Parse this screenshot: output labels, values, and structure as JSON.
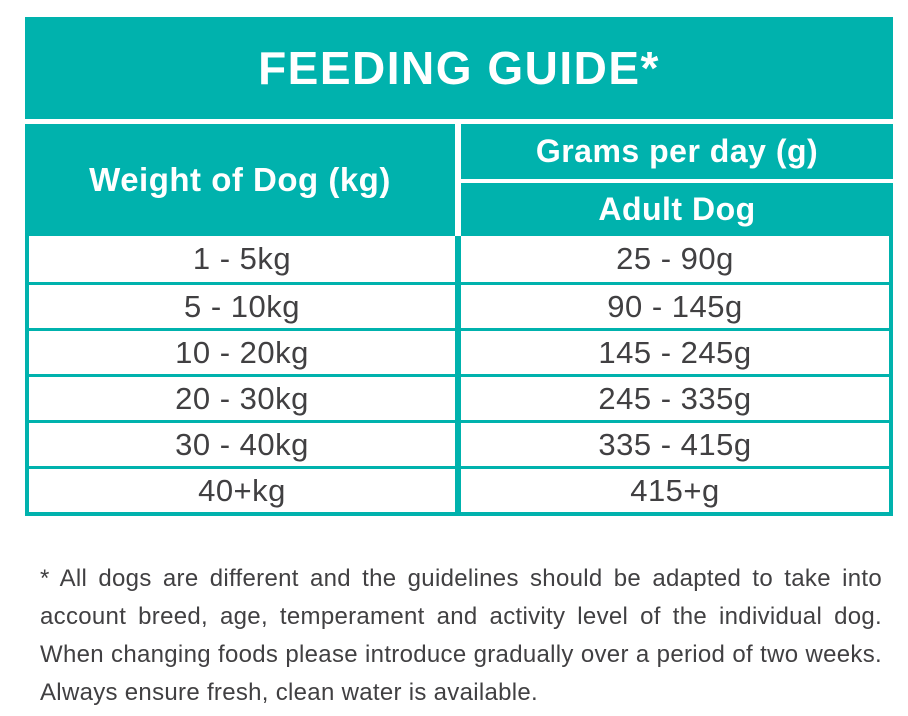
{
  "colors": {
    "teal": "#00B2AD",
    "text_dark": "#414042"
  },
  "feeding_guide": {
    "title": "FEEDING GUIDE*",
    "columns": {
      "weight_header": "Weight of Dog (kg)",
      "grams_header": "Grams per day (g)",
      "grams_subheader": "Adult Dog"
    },
    "rows": [
      {
        "weight": "1 - 5kg",
        "grams": "25 - 90g"
      },
      {
        "weight": "5 - 10kg",
        "grams": "90 - 145g"
      },
      {
        "weight": "10 - 20kg",
        "grams": "145 - 245g"
      },
      {
        "weight": "20 - 30kg",
        "grams": "245 - 335g"
      },
      {
        "weight": "30 - 40kg",
        "grams": "335 - 415g"
      },
      {
        "weight": "40+kg",
        "grams": "415+g"
      }
    ]
  },
  "footnote": "* All dogs are different and the guidelines should be adapted to take into account breed, age, temperament and activity level of the individual dog. When changing foods please introduce gradually over a period of two weeks. Always ensure fresh, clean water is available."
}
